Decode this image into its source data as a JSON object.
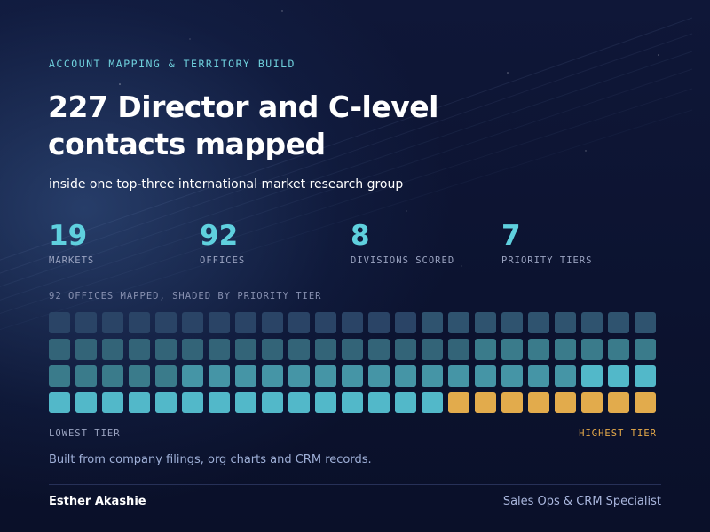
{
  "header": {
    "eyebrow": "ACCOUNT MAPPING & TERRITORY BUILD",
    "title_line1": "227 Director and C-level",
    "title_line2": "contacts mapped",
    "subtitle": "inside one top-three international market research group"
  },
  "stats": [
    {
      "value": "19",
      "label": "MARKETS"
    },
    {
      "value": "92",
      "label": "OFFICES"
    },
    {
      "value": "8",
      "label": "DIVISIONS SCORED"
    },
    {
      "value": "7",
      "label": "PRIORITY TIERS"
    }
  ],
  "grid": {
    "caption": "92 OFFICES MAPPED, SHADED BY PRIORITY TIER",
    "low_label": "LOWEST TIER",
    "high_label": "HIGHEST TIER",
    "tiers_by_row": [
      [
        1,
        1,
        1,
        1,
        1,
        1,
        1,
        1,
        1,
        1,
        1,
        1,
        1,
        1,
        2,
        2,
        2,
        2,
        2,
        2,
        2,
        2,
        2
      ],
      [
        3,
        3,
        3,
        3,
        3,
        3,
        3,
        3,
        3,
        3,
        3,
        3,
        3,
        3,
        3,
        3,
        4,
        4,
        4,
        4,
        4,
        4,
        4
      ],
      [
        4,
        4,
        4,
        4,
        4,
        5,
        5,
        5,
        5,
        5,
        5,
        5,
        5,
        5,
        5,
        5,
        5,
        5,
        5,
        5,
        6,
        6,
        6
      ],
      [
        6,
        6,
        6,
        6,
        6,
        6,
        6,
        6,
        6,
        6,
        6,
        6,
        6,
        6,
        6,
        7,
        7,
        7,
        7,
        7,
        7,
        7,
        7
      ]
    ],
    "tier_colors": {
      "1": "#2a4466",
      "2": "#2f536f",
      "3": "#336478",
      "4": "#3a7b8b",
      "5": "#4595a6",
      "6": "#52b8c9",
      "7": "#e2ab4c"
    }
  },
  "footer": {
    "note": "Built from company filings, org charts and CRM records.",
    "author": "Esther Akashie",
    "role": "Sales Ops & CRM Specialist"
  }
}
